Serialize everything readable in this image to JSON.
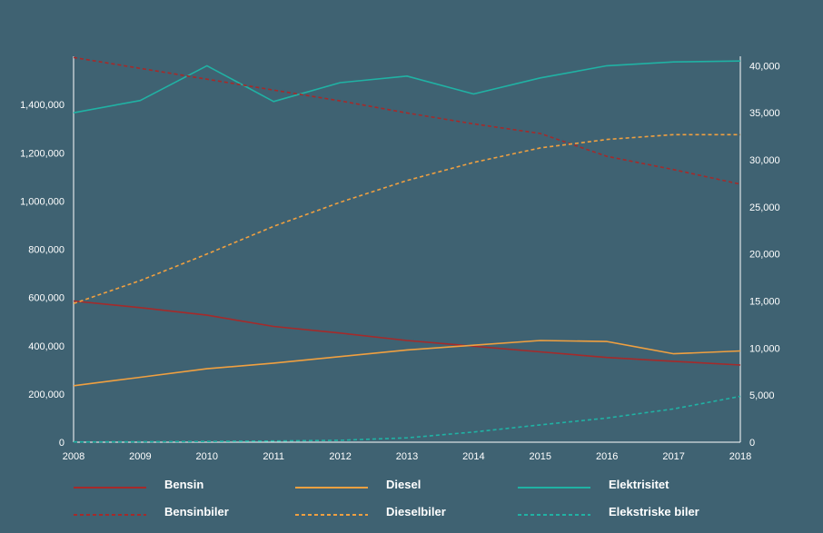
{
  "chart_data": {
    "type": "line",
    "x": [
      2008,
      2009,
      2010,
      2011,
      2012,
      2013,
      2014,
      2015,
      2016,
      2017,
      2018
    ],
    "xlabels": [
      "2008",
      "2009",
      "2010",
      "2011",
      "2012",
      "2013",
      "2014",
      "2015",
      "2016",
      "2017",
      "2018"
    ],
    "ylim_left": [
      0,
      1600000
    ],
    "ylim_right": [
      0,
      41000
    ],
    "left_ticks": [
      0,
      200000,
      400000,
      600000,
      800000,
      1000000,
      1200000,
      1400000
    ],
    "left_tick_labels": [
      "0",
      "200,000",
      "400,000",
      "600,000",
      "800,000",
      "1,000,000",
      "1,200,000",
      "1,400,000"
    ],
    "right_ticks": [
      0,
      5000,
      10000,
      15000,
      20000,
      25000,
      30000,
      35000,
      40000
    ],
    "right_tick_labels": [
      "0",
      "5,000",
      "10,000",
      "15,000",
      "20,000",
      "25,000",
      "30,000",
      "35,000",
      "40,000"
    ],
    "grid": false,
    "legend_position": "bottom",
    "series": [
      {
        "name": "Bensin",
        "axis": "right",
        "style": "solid",
        "color": "#a52a2a",
        "values": [
          15000,
          14300,
          13500,
          12300,
          11600,
          10800,
          10200,
          9600,
          9000,
          8600,
          8200
        ]
      },
      {
        "name": "Diesel",
        "axis": "right",
        "style": "solid",
        "color": "#f0a040",
        "values": [
          6000,
          6900,
          7800,
          8400,
          9100,
          9800,
          10300,
          10800,
          10700,
          9400,
          9700
        ]
      },
      {
        "name": "Elektrisitet",
        "axis": "right",
        "style": "solid",
        "color": "#20b2a4",
        "values": [
          35000,
          36300,
          40000,
          36200,
          38200,
          38900,
          37000,
          38700,
          40000,
          40400,
          40500
        ]
      },
      {
        "name": "Bensinbiler",
        "axis": "left",
        "style": "dashed",
        "color": "#a52a2a",
        "values": [
          1595000,
          1550000,
          1505000,
          1460000,
          1415000,
          1365000,
          1320000,
          1280000,
          1185000,
          1130000,
          1070000
        ]
      },
      {
        "name": "Dieselbiler",
        "axis": "left",
        "style": "dashed",
        "color": "#f0a040",
        "values": [
          575000,
          670000,
          780000,
          895000,
          995000,
          1085000,
          1160000,
          1220000,
          1255000,
          1275000,
          1275000
        ]
      },
      {
        "name": "Elekstriske biler",
        "axis": "left",
        "style": "dashed",
        "color": "#20b2a4",
        "values": [
          1000,
          2000,
          3000,
          5000,
          8000,
          18000,
          42000,
          72000,
          100000,
          138000,
          190000
        ]
      }
    ]
  }
}
